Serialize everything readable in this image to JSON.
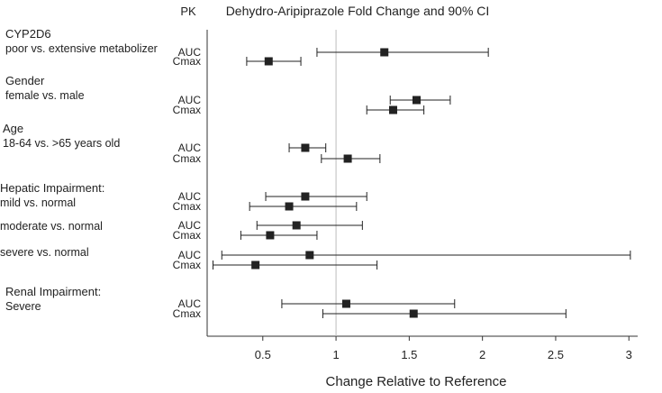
{
  "chart_data": {
    "type": "scatter",
    "title": "Dehydro-Aripiprazole Fold Change and 90% CI",
    "pk_header": "PK",
    "xlabel": "Change Relative to Reference",
    "xlim": [
      0.12,
      3.06
    ],
    "xticks": [
      0.5,
      1,
      1.5,
      2,
      2.5,
      3
    ],
    "xtick_labels": [
      "0.5",
      "1",
      "1.5",
      "2",
      "2.5",
      "3"
    ],
    "reference_value": 1,
    "grid": false,
    "groups": [
      {
        "name": "CYP2D6",
        "sublabel": "poor vs. extensive metabolizer"
      },
      {
        "name": "Gender",
        "sublabel": "female vs. male"
      },
      {
        "name": "Age",
        "sublabel": "18-64 vs. >65 years old"
      },
      {
        "name": "Hepatic Impairment:",
        "sublabel": "mild vs. normal"
      },
      {
        "name": "",
        "sublabel": "moderate vs. normal"
      },
      {
        "name": "",
        "sublabel": "severe vs. normal"
      },
      {
        "name": "Renal Impairment:",
        "sublabel": "Severe"
      }
    ],
    "rows": [
      {
        "group": 0,
        "pk": "AUC",
        "estimate": 1.33,
        "lower": 0.87,
        "upper": 2.04
      },
      {
        "group": 0,
        "pk": "Cmax",
        "estimate": 0.54,
        "lower": 0.39,
        "upper": 0.76
      },
      {
        "group": 1,
        "pk": "AUC",
        "estimate": 1.55,
        "lower": 1.37,
        "upper": 1.78
      },
      {
        "group": 1,
        "pk": "Cmax",
        "estimate": 1.39,
        "lower": 1.21,
        "upper": 1.6
      },
      {
        "group": 2,
        "pk": "AUC",
        "estimate": 0.79,
        "lower": 0.68,
        "upper": 0.93
      },
      {
        "group": 2,
        "pk": "Cmax",
        "estimate": 1.08,
        "lower": 0.9,
        "upper": 1.3
      },
      {
        "group": 3,
        "pk": "AUC",
        "estimate": 0.79,
        "lower": 0.52,
        "upper": 1.21
      },
      {
        "group": 3,
        "pk": "Cmax",
        "estimate": 0.68,
        "lower": 0.41,
        "upper": 1.14
      },
      {
        "group": 4,
        "pk": "AUC",
        "estimate": 0.73,
        "lower": 0.46,
        "upper": 1.18
      },
      {
        "group": 4,
        "pk": "Cmax",
        "estimate": 0.55,
        "lower": 0.35,
        "upper": 0.87
      },
      {
        "group": 5,
        "pk": "AUC",
        "estimate": 0.82,
        "lower": 0.22,
        "upper": 3.01
      },
      {
        "group": 5,
        "pk": "Cmax",
        "estimate": 0.45,
        "lower": 0.16,
        "upper": 1.28
      },
      {
        "group": 6,
        "pk": "AUC",
        "estimate": 1.07,
        "lower": 0.63,
        "upper": 1.81
      },
      {
        "group": 6,
        "pk": "Cmax",
        "estimate": 1.53,
        "lower": 0.91,
        "upper": 2.57
      }
    ]
  }
}
